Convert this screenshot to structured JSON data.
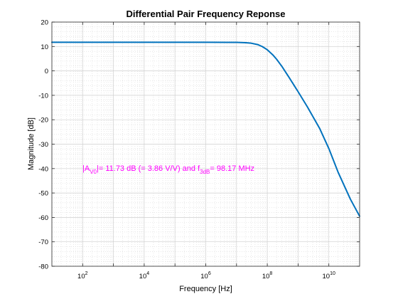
{
  "chart_data": {
    "type": "line",
    "title": "Differential Pair Frequency Reponse",
    "xlabel": "Frequency [Hz]",
    "ylabel": "Magnitude [dB]",
    "xscale": "log",
    "xlim": [
      10,
      100000000000.0
    ],
    "ylim": [
      -80,
      20
    ],
    "grid": "major-and-minor",
    "x_ticks": [
      {
        "base": "10",
        "exp": "2",
        "value": 100
      },
      {
        "base": "10",
        "exp": "4",
        "value": 10000
      },
      {
        "base": "10",
        "exp": "6",
        "value": 1000000
      },
      {
        "base": "10",
        "exp": "8",
        "value": 100000000
      },
      {
        "base": "10",
        "exp": "10",
        "value": 10000000000
      }
    ],
    "y_ticks": [
      20,
      10,
      0,
      -10,
      -20,
      -30,
      -40,
      -50,
      -60,
      -70,
      -80
    ],
    "series": [
      {
        "color": "#0072BD",
        "x": [
          10,
          100,
          1000,
          10000,
          100000,
          1000000,
          5000000,
          10000000,
          20000000,
          30000000,
          50000000,
          70000000,
          98170000,
          150000000,
          200000000,
          300000000,
          500000000,
          1000000000,
          2000000000,
          5000000000,
          10000000000,
          20000000000,
          50000000000,
          100000000000
        ],
        "y": [
          11.73,
          11.73,
          11.73,
          11.73,
          11.73,
          11.73,
          11.7,
          11.68,
          11.55,
          11.35,
          10.75,
          9.9,
          8.73,
          6.6,
          4.8,
          1.8,
          -2.5,
          -8.5,
          -14.7,
          -23.5,
          -31.8,
          -41.5,
          -52.5,
          -59.5
        ]
      }
    ],
    "annotation": {
      "color": "#ff00ff",
      "text_a": "|A",
      "sub_a": "V0",
      "text_b": "|= 11.73 dB (= 3.86 V/V) and f",
      "sub_b": "3dB",
      "text_c": "= 98.17 MHz"
    }
  }
}
